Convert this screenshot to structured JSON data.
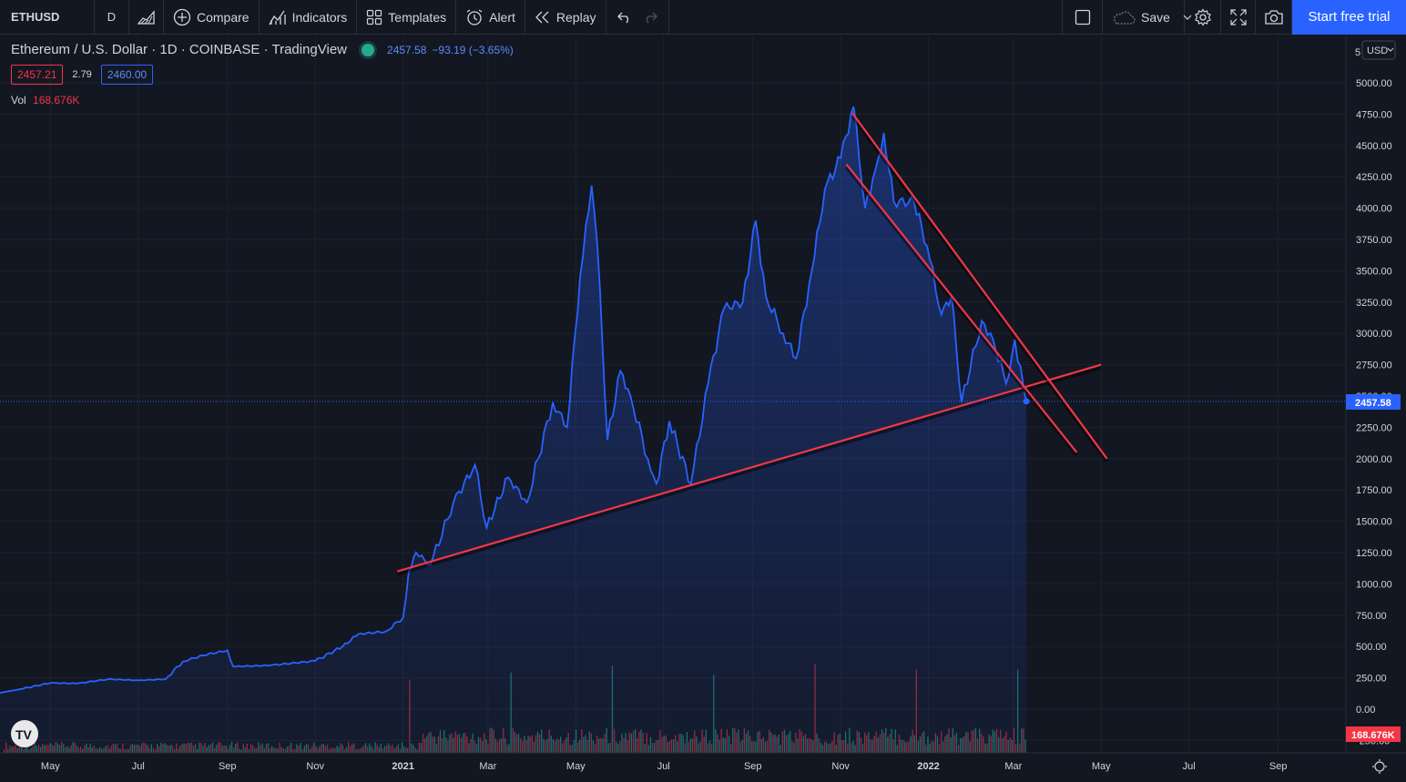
{
  "toolbar": {
    "symbol": "ETHUSD",
    "interval": "D",
    "compare": "Compare",
    "indicators": "Indicators",
    "templates": "Templates",
    "alert": "Alert",
    "replay": "Replay",
    "save": "Save",
    "start_trial": "Start free trial"
  },
  "legend": {
    "title": "Ethereum / U.S. Dollar · 1D · COINBASE · TradingView",
    "last": "2457.58",
    "change": "−93.19 (−3.65%)",
    "bid": "2457.21",
    "spread": "2.79",
    "ask": "2460.00",
    "vol_label": "Vol",
    "vol_value": "168.676K"
  },
  "axis": {
    "currency": "USD",
    "last_price_label": "2457.58",
    "volume_label": "168.676K",
    "top_partial": "5"
  },
  "colors": {
    "background": "#131722",
    "line": "#2962ff",
    "trendline": "#f23645",
    "volume_up": "#22ab94",
    "volume_down": "#f23645"
  },
  "chart_data": {
    "type": "area",
    "series_name": "Ethereum / U.S. Dollar",
    "ylim": [
      -250,
      5000
    ],
    "y_ticks": [
      5000,
      4750,
      4500,
      4250,
      4000,
      3750,
      3500,
      3250,
      3000,
      2750,
      2500,
      2250,
      2000,
      1750,
      1500,
      1250,
      1000,
      750,
      500,
      250,
      0,
      -250
    ],
    "x_ticks": [
      "May",
      "Jul",
      "Sep",
      "Nov",
      "2021",
      "Mar",
      "May",
      "Jul",
      "Sep",
      "Nov",
      "2022",
      "Mar",
      "May",
      "Jul",
      "Sep"
    ],
    "x_tick_dates": [
      "2020-05-01",
      "2020-07-01",
      "2020-09-01",
      "2020-11-01",
      "2021-01-01",
      "2021-03-01",
      "2021-05-01",
      "2021-07-01",
      "2021-09-01",
      "2021-11-01",
      "2022-01-01",
      "2022-03-01",
      "2022-05-01",
      "2022-07-01",
      "2022-09-01"
    ],
    "xlim": [
      "2020-03-27",
      "2022-10-18"
    ],
    "points": [
      [
        "2020-03-27",
        130
      ],
      [
        "2020-04-10",
        160
      ],
      [
        "2020-05-01",
        210
      ],
      [
        "2020-05-20",
        205
      ],
      [
        "2020-06-10",
        240
      ],
      [
        "2020-07-01",
        230
      ],
      [
        "2020-07-20",
        240
      ],
      [
        "2020-08-01",
        380
      ],
      [
        "2020-08-15",
        430
      ],
      [
        "2020-09-01",
        470
      ],
      [
        "2020-09-05",
        340
      ],
      [
        "2020-10-01",
        350
      ],
      [
        "2020-11-01",
        385
      ],
      [
        "2020-11-20",
        500
      ],
      [
        "2020-12-01",
        600
      ],
      [
        "2020-12-20",
        620
      ],
      [
        "2021-01-01",
        730
      ],
      [
        "2021-01-05",
        1100
      ],
      [
        "2021-01-10",
        1250
      ],
      [
        "2021-01-20",
        1150
      ],
      [
        "2021-02-05",
        1650
      ],
      [
        "2021-02-20",
        1950
      ],
      [
        "2021-02-28",
        1450
      ],
      [
        "2021-03-15",
        1850
      ],
      [
        "2021-03-28",
        1650
      ],
      [
        "2021-04-15",
        2450
      ],
      [
        "2021-04-25",
        2250
      ],
      [
        "2021-05-04",
        3450
      ],
      [
        "2021-05-12",
        4180
      ],
      [
        "2021-05-16",
        3700
      ],
      [
        "2021-05-23",
        2150
      ],
      [
        "2021-06-01",
        2700
      ],
      [
        "2021-06-08",
        2500
      ],
      [
        "2021-06-20",
        2000
      ],
      [
        "2021-06-26",
        1800
      ],
      [
        "2021-07-05",
        2300
      ],
      [
        "2021-07-20",
        1800
      ],
      [
        "2021-08-01",
        2600
      ],
      [
        "2021-08-12",
        3200
      ],
      [
        "2021-08-25",
        3250
      ],
      [
        "2021-09-03",
        3900
      ],
      [
        "2021-09-10",
        3300
      ],
      [
        "2021-09-22",
        3000
      ],
      [
        "2021-10-01",
        2800
      ],
      [
        "2021-10-12",
        3500
      ],
      [
        "2021-10-21",
        4150
      ],
      [
        "2021-11-01",
        4400
      ],
      [
        "2021-11-10",
        4810
      ],
      [
        "2021-11-18",
        4000
      ],
      [
        "2021-11-25",
        4300
      ],
      [
        "2021-12-01",
        4600
      ],
      [
        "2021-12-08",
        4050
      ],
      [
        "2021-12-22",
        4050
      ],
      [
        "2021-12-31",
        3700
      ],
      [
        "2022-01-10",
        3150
      ],
      [
        "2022-01-17",
        3300
      ],
      [
        "2022-01-24",
        2450
      ],
      [
        "2022-02-07",
        3100
      ],
      [
        "2022-02-15",
        2950
      ],
      [
        "2022-02-24",
        2600
      ],
      [
        "2022-03-02",
        2950
      ],
      [
        "2022-03-08",
        2580
      ],
      [
        "2022-03-10",
        2457
      ]
    ],
    "trendlines": [
      {
        "from": [
          "2020-12-28",
          1100
        ],
        "to": [
          "2022-05-01",
          2750
        ]
      },
      {
        "from": [
          "2021-11-05",
          4350
        ],
        "to": [
          "2022-04-14",
          2050
        ]
      },
      {
        "from": [
          "2021-11-09",
          4760
        ],
        "to": [
          "2022-05-05",
          2000
        ]
      }
    ],
    "last_price": 2457.58
  }
}
